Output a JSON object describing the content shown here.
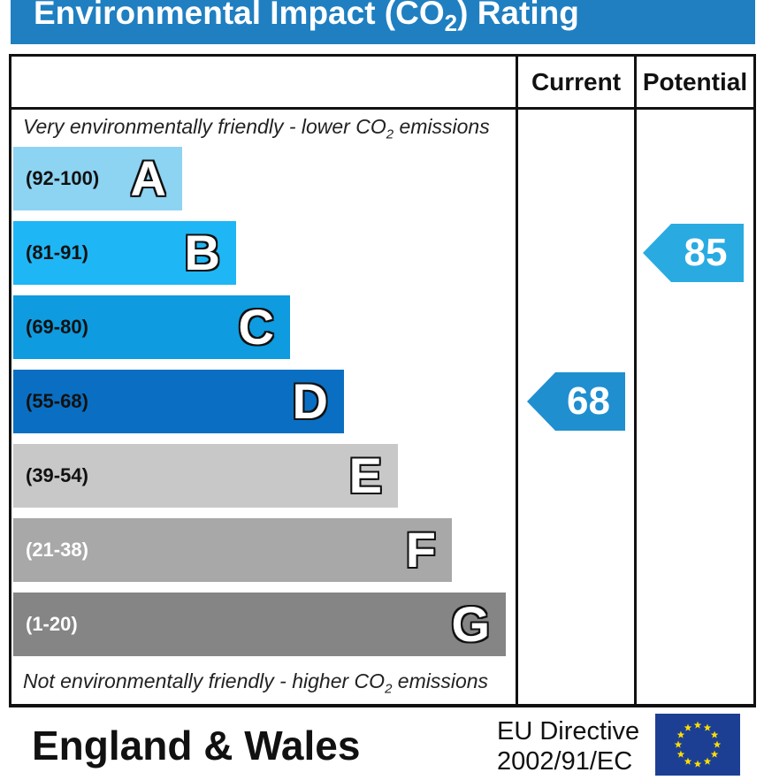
{
  "title": {
    "text_main": "Environmental Impact (CO",
    "text_sub": "2",
    "text_end": ") Rating"
  },
  "columns": {
    "current": "Current",
    "potential": "Potential"
  },
  "captions": {
    "top_pre": "Very environmentally friendly - lower CO",
    "top_sub": "2",
    "top_post": " emissions",
    "bottom_pre": "Not environmentally friendly - higher CO",
    "bottom_sub": "2",
    "bottom_post": " emissions"
  },
  "chart_data": {
    "type": "bar",
    "categories": [
      "A",
      "B",
      "C",
      "D",
      "E",
      "F",
      "G"
    ],
    "ranges": [
      "(92-100)",
      "(81-91)",
      "(69-80)",
      "(55-68)",
      "(39-54)",
      "(21-38)",
      "(1-20)"
    ],
    "colors": [
      "#8dd3f2",
      "#1fb6f5",
      "#0e9be0",
      "#0a6fc2",
      "#c8c8c8",
      "#a8a8a8",
      "#858585"
    ],
    "range_text_colors": [
      "#111111",
      "#111111",
      "#111111",
      "#111111",
      "#111111",
      "#ffffff",
      "#ffffff"
    ],
    "current": {
      "value": 68,
      "band": "D",
      "color": "#1f8fd0"
    },
    "potential": {
      "value": 85,
      "band": "B",
      "color": "#29abe2"
    }
  },
  "footer": {
    "region": "England & Wales",
    "directive_line1": "EU Directive",
    "directive_line2": "2002/91/EC"
  },
  "flag": {
    "icon": "eu-flag-icon",
    "star_color": "#ffdd00"
  }
}
